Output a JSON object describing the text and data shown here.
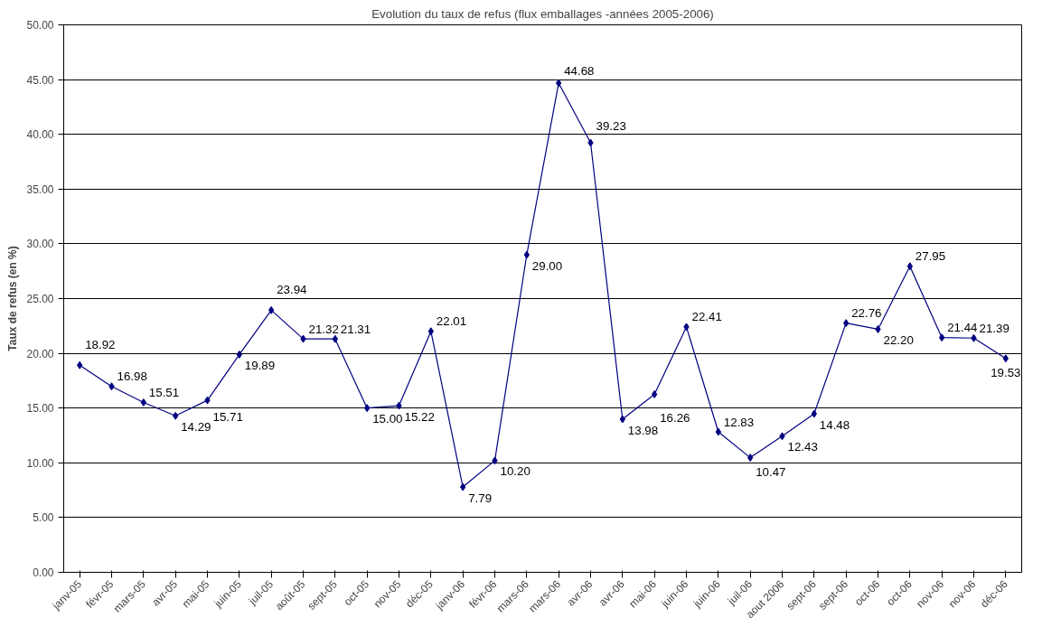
{
  "chart_data": {
    "type": "line",
    "title": "Evolution du taux de refus (flux emballages -années 2005-2006)",
    "ylabel": "Taux de refus (en %)",
    "categories": [
      "janv-05",
      "févr-05",
      "mars-05",
      "avr-05",
      "mai-05",
      "juin-05",
      "juil-05",
      "août-05",
      "sept-05",
      "oct-05",
      "nov-05",
      "déc-05",
      "janv-06",
      "févr-06",
      "mars-06",
      "mars-06",
      "avr-06",
      "avr-06",
      "mai-06",
      "juin-06",
      "juin-06",
      "juil-06",
      "aout 2006",
      "sept-06",
      "sept-06",
      "oct-06",
      "oct-06",
      "nov-06",
      "nov-06",
      "déc-06"
    ],
    "series": [
      {
        "color": "#000080",
        "values": [
          18.92,
          16.98,
          15.51,
          14.29,
          15.71,
          19.89,
          23.94,
          21.32,
          21.31,
          15.0,
          15.22,
          22.01,
          7.79,
          10.2,
          29.0,
          44.68,
          39.23,
          13.98,
          16.26,
          22.41,
          12.83,
          10.47,
          12.43,
          14.48,
          22.76,
          22.2,
          27.95,
          21.44,
          21.39,
          19.53
        ],
        "value_labels": [
          "18.92",
          "16.98",
          "15.51",
          "14.29",
          "15.71",
          "19.89",
          "23.94",
          "21.32",
          "21.31",
          "15.00",
          "15.22",
          "22.01",
          "7.79",
          "10.20",
          "29.00",
          "44.68",
          "39.23",
          "13.98",
          "16.26",
          "22.41",
          "12.83",
          "10.47",
          "12.43",
          "14.48",
          "22.76",
          "22.20",
          "27.95",
          "21.44",
          "21.39",
          "19.53"
        ]
      }
    ],
    "ylim": [
      0,
      50
    ],
    "yticks": [
      {
        "value": 0,
        "label": "0.00"
      },
      {
        "value": 5,
        "label": "5.00"
      },
      {
        "value": 10,
        "label": "10.00"
      },
      {
        "value": 15,
        "label": "15.00"
      },
      {
        "value": 20,
        "label": "20.00"
      },
      {
        "value": 25,
        "label": "25.00"
      },
      {
        "value": 30,
        "label": "30.00"
      },
      {
        "value": 35,
        "label": "35.00"
      },
      {
        "value": 40,
        "label": "40.00"
      },
      {
        "value": 45,
        "label": "45.00"
      },
      {
        "value": 50,
        "label": "50.00"
      }
    ],
    "grid": "y",
    "marker": "diamond",
    "line_style": "solid",
    "data_labels": true
  }
}
